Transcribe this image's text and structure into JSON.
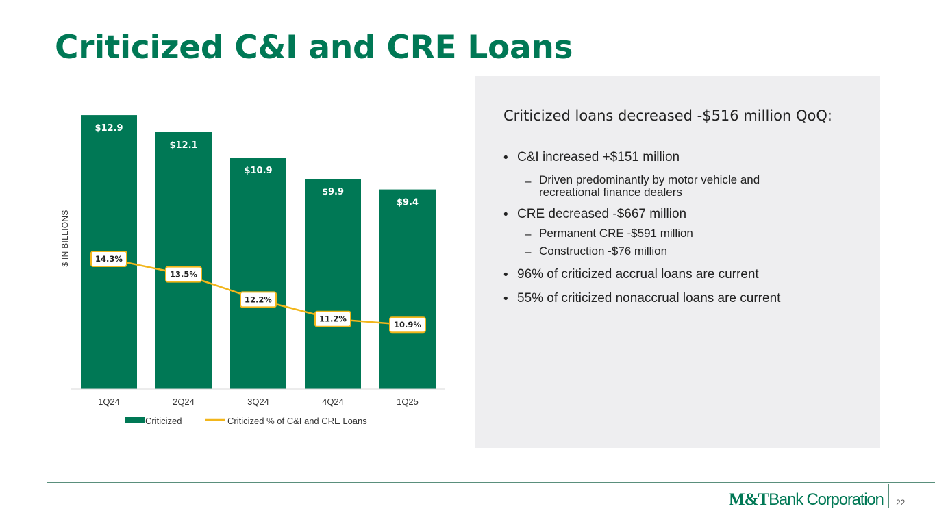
{
  "slide": {
    "title": "Criticized C&I and CRE Loans",
    "page_number": "22",
    "logo": {
      "mt": "M&T",
      "bank": "Bank Corporation"
    }
  },
  "colors": {
    "bar": "#007855",
    "line": "#f2b61b",
    "title": "#007855",
    "panel_bg": "#eeeef0"
  },
  "chart_data": {
    "type": "bar",
    "categories": [
      "1Q24",
      "2Q24",
      "3Q24",
      "4Q24",
      "1Q25"
    ],
    "ylabel": "$ IN BILLIONS",
    "ylim": [
      0,
      13
    ],
    "grid": false,
    "legend_position": "bottom",
    "series": [
      {
        "name": "Criticized",
        "type": "bar",
        "values": [
          12.9,
          12.1,
          10.9,
          9.9,
          9.4
        ],
        "labels": [
          "$12.9",
          "$12.1",
          "$10.9",
          "$9.9",
          "$9.4"
        ]
      },
      {
        "name": "Criticized % of C&I and CRE Loans",
        "type": "line",
        "values": [
          14.3,
          13.5,
          12.2,
          11.2,
          10.9
        ],
        "labels": [
          "14.3%",
          "13.5%",
          "12.2%",
          "11.2%",
          "10.9%"
        ],
        "axis": "secondary"
      }
    ]
  },
  "panel": {
    "heading": "Criticized loans decreased -$516 million QoQ:",
    "points": [
      {
        "level": 1,
        "text": " C&I increased +$151 million"
      },
      {
        "level": 2,
        "text": "Driven predominantly by motor vehicle and recreational finance dealers"
      },
      {
        "level": 1,
        "text": "CRE decreased -$667 million"
      },
      {
        "level": 2,
        "text": "Permanent CRE -$591 million"
      },
      {
        "level": 2,
        "text": "Construction -$76 million"
      },
      {
        "level": 1,
        "text": "96% of criticized accrual loans are current"
      },
      {
        "level": 1,
        "text": "55% of criticized nonaccrual loans are current"
      }
    ]
  }
}
